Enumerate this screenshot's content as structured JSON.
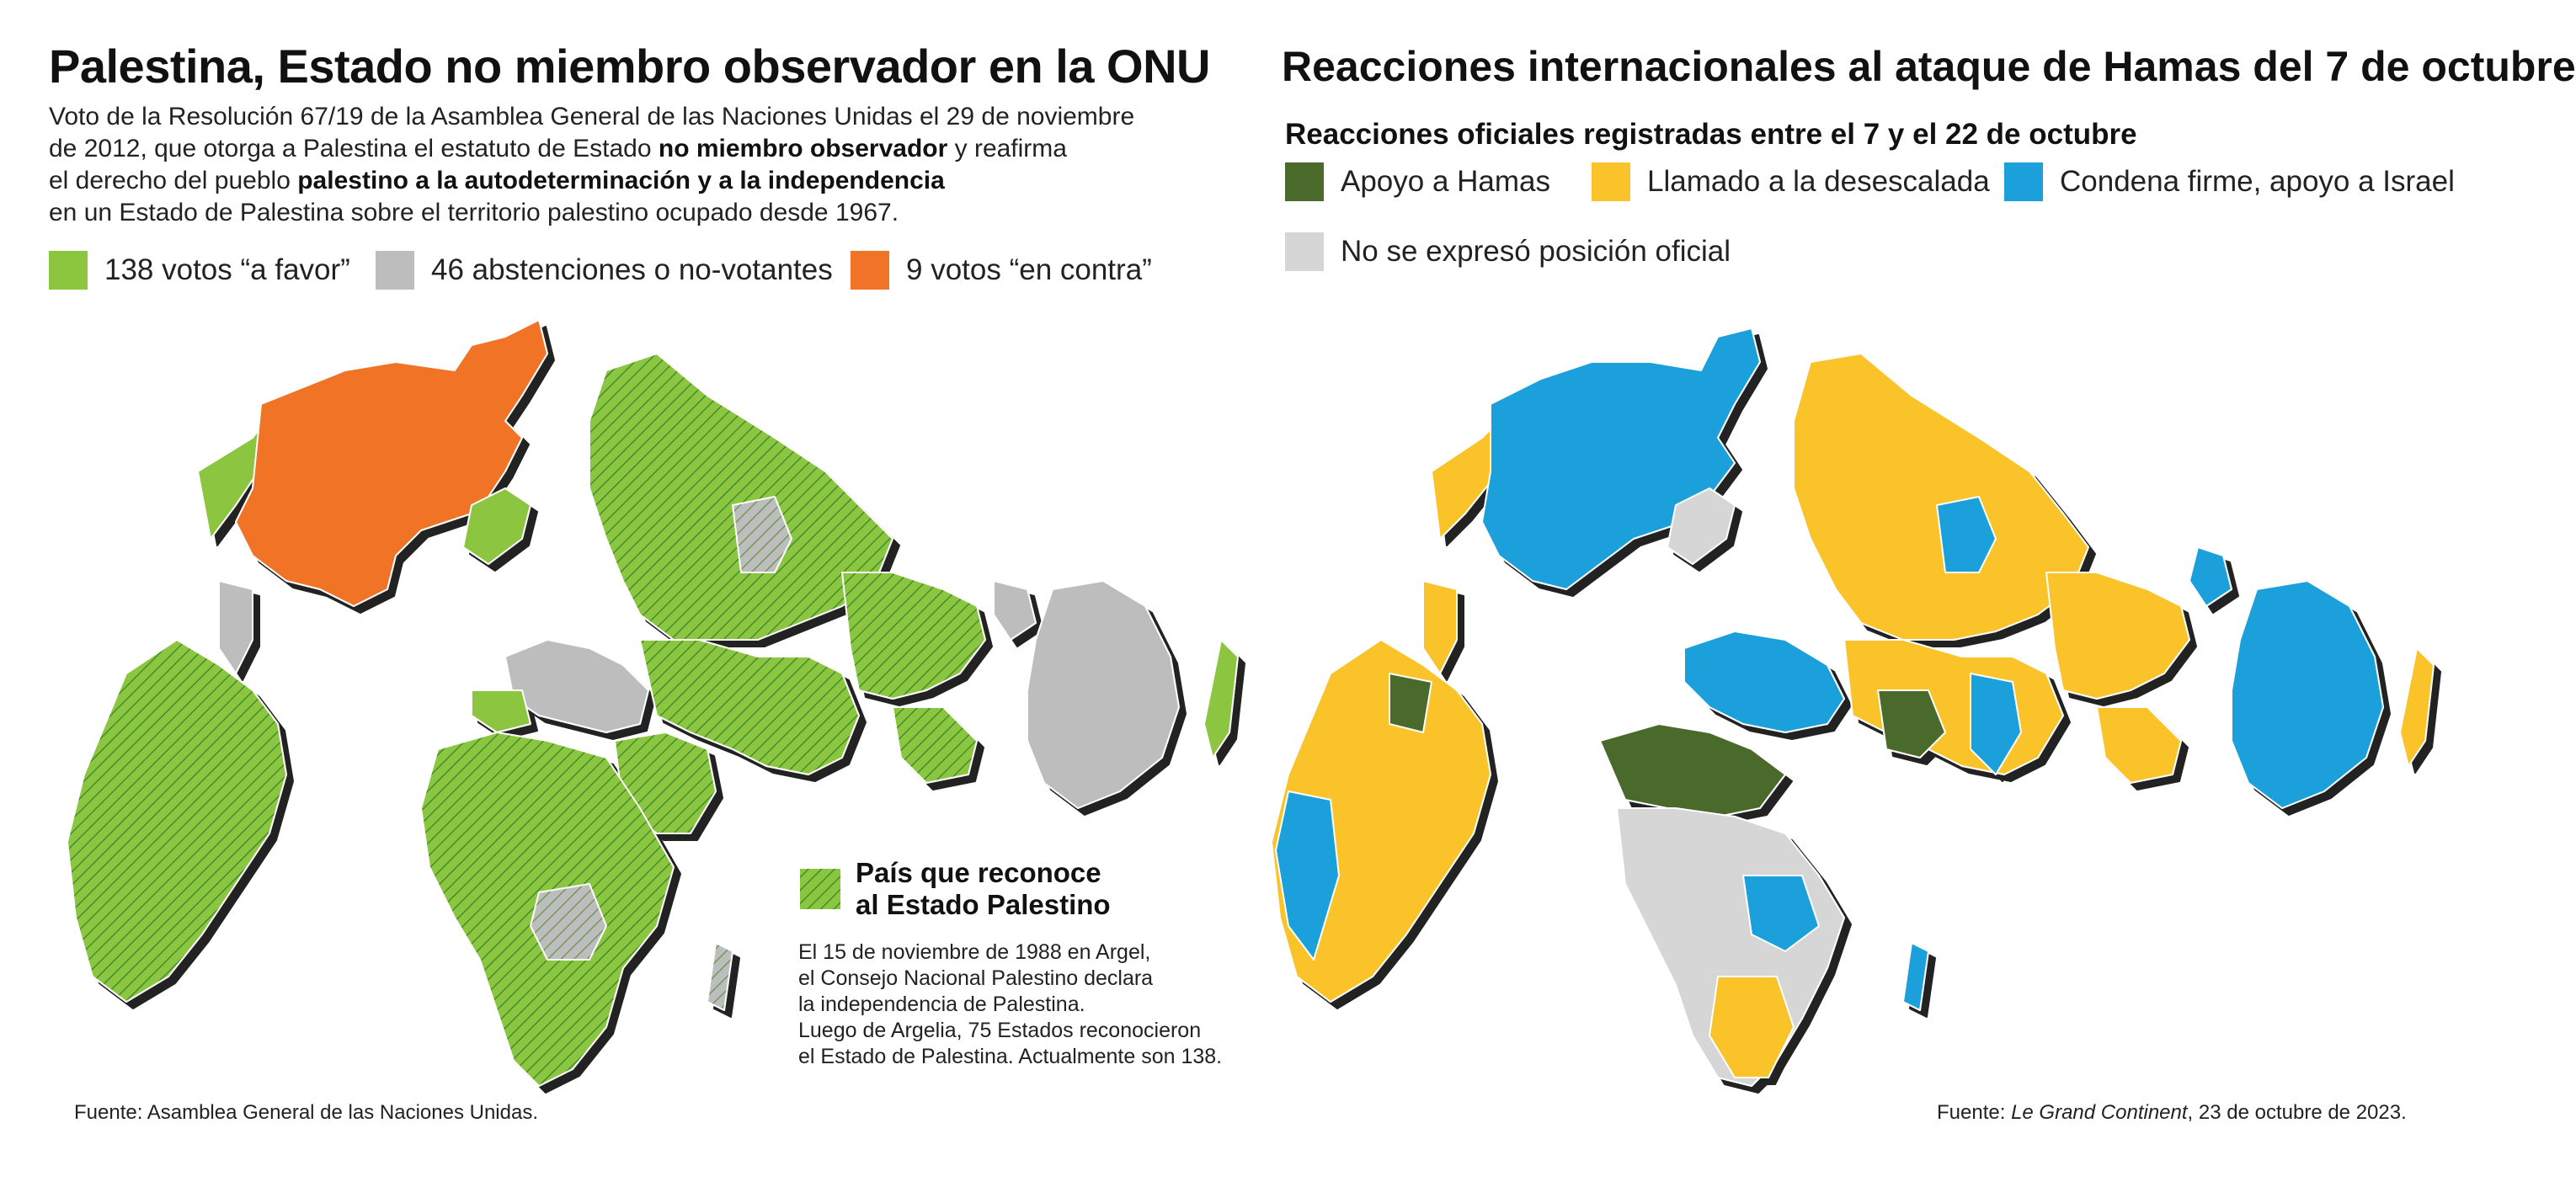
{
  "left": {
    "title": "Palestina, Estado no miembro observador en la ONU",
    "desc": {
      "l1": "Voto de la Resolución 67/19 de la Asamblea General de las Naciones Unidas el 29 de noviembre",
      "l2a": "de 2012, que otorga a Palestina el estatuto de Estado ",
      "l2b": "no miembro observador",
      "l2c": " y reafirma",
      "l3a": "el derecho del pueblo ",
      "l3b": "palestino a la autodeterminación y a la independencia",
      "l4": "en un Estado de Palestina sobre el territorio palestino ocupado desde 1967."
    },
    "legend": [
      {
        "label": "138 votos “a favor”",
        "color": "#8cc63f"
      },
      {
        "label": "46 abstenciones o no-votantes",
        "color": "#bdbdbd"
      },
      {
        "label": "9 votos “en contra”",
        "color": "#f07328"
      }
    ],
    "recognize": {
      "title1": "País que reconoce",
      "title2": "al Estado Palestino",
      "l1": "El 15 de noviembre de 1988 en Argel,",
      "l2": "el Consejo Nacional Palestino declara",
      "l3": "la independencia de Palestina.",
      "l4": "Luego de Argelia, 75 Estados reconocieron",
      "l5": "el Estado de Palestina. Actualmente son 138."
    },
    "source": "Fuente: Asamblea General de las Naciones Unidas."
  },
  "right": {
    "title": "Reacciones internacionales al ataque de Hamas del 7 de octubre",
    "subtitle": "Reacciones oficiales registradas entre el 7 y el 22 de octubre",
    "legend": [
      {
        "label": "Apoyo a Hamas",
        "color": "#4a6b2b"
      },
      {
        "label": "Llamado a la desescalada",
        "color": "#fbc32a"
      },
      {
        "label": "Condena firme, apoyo a Israel",
        "color": "#1ca0dc"
      },
      {
        "label": "No se expresó posición oficial",
        "color": "#d6d6d6"
      }
    ],
    "source_prefix": "Fuente: ",
    "source_italic": "Le Grand Continent",
    "source_suffix": ", 23 de octubre de 2023."
  }
}
